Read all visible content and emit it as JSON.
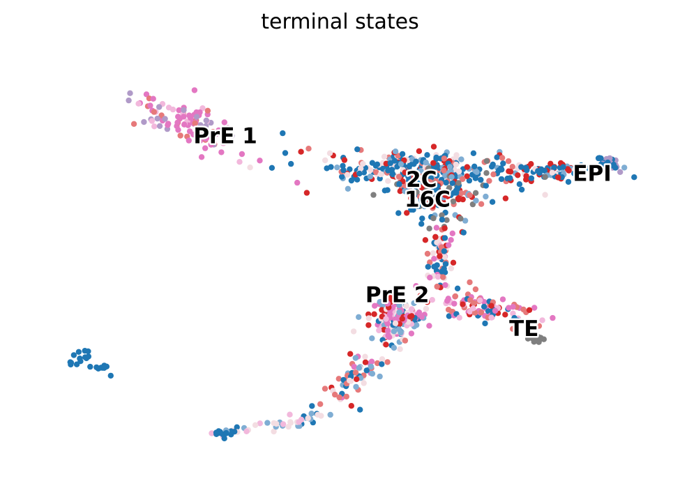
{
  "chart_data": {
    "type": "scatter",
    "title": "terminal states",
    "xlabel": "",
    "ylabel": "",
    "xlim": [
      0,
      100
    ],
    "ylim": [
      0,
      100
    ],
    "grid": false,
    "axes_visible": false,
    "colors": {
      "blue": "#1f77b4",
      "light_blue": "#7fadd3",
      "red": "#d62728",
      "light_red": "#e6797a",
      "pink": "#e377c2",
      "light_pink": "#f2b8dc",
      "faint": "#f3dde2",
      "purple": "#b09ac8",
      "gray": "#7f7f7f"
    },
    "clusters": [
      {
        "cx": 25.5,
        "cy": 82.5,
        "sx": 5.5,
        "sy": 2.2,
        "n": 110,
        "angle": -34,
        "colors": [
          "pink",
          "pink",
          "pink",
          "light_pink",
          "purple",
          "light_red"
        ]
      },
      {
        "cx": 63,
        "cy": 71.5,
        "sx": 8,
        "sy": 2.3,
        "n": 260,
        "angle": 0,
        "colors": [
          "blue",
          "blue",
          "blue",
          "red",
          "light_red",
          "light_blue",
          "faint"
        ]
      },
      {
        "cx": 66,
        "cy": 65,
        "sx": 3.6,
        "sy": 3.2,
        "n": 140,
        "angle": 0,
        "colors": [
          "blue",
          "red",
          "light_red",
          "light_blue",
          "gray",
          "blue"
        ]
      },
      {
        "cx": 85,
        "cy": 71,
        "sx": 4,
        "sy": 1.1,
        "n": 70,
        "angle": 3,
        "colors": [
          "blue",
          "blue",
          "light_blue",
          "faint",
          "red"
        ]
      },
      {
        "cx": 94.5,
        "cy": 72.8,
        "sx": 0.9,
        "sy": 0.9,
        "n": 45,
        "angle": 0,
        "colors": [
          "blue",
          "blue",
          "blue",
          "purple"
        ]
      },
      {
        "cx": 66.5,
        "cy": 49,
        "sx": 1.2,
        "sy": 4.5,
        "n": 70,
        "angle": 0,
        "colors": [
          "light_red",
          "pink",
          "red",
          "blue",
          "light_pink",
          "faint"
        ]
      },
      {
        "cx": 59.5,
        "cy": 33.5,
        "sx": 2.2,
        "sy": 2.6,
        "n": 150,
        "angle": 0,
        "colors": [
          "pink",
          "light_pink",
          "pink",
          "red",
          "light_blue",
          "blue",
          "faint"
        ]
      },
      {
        "cx": 73.5,
        "cy": 36.5,
        "sx": 5,
        "sy": 1.8,
        "n": 95,
        "angle": -22,
        "colors": [
          "pink",
          "pink",
          "red",
          "light_red",
          "blue",
          "light_pink"
        ]
      },
      {
        "cx": 82.5,
        "cy": 28.8,
        "sx": 0.8,
        "sy": 0.5,
        "n": 25,
        "angle": 0,
        "colors": [
          "gray",
          "gray",
          "gray"
        ]
      },
      {
        "cx": 53,
        "cy": 20,
        "sx": 4.5,
        "sy": 1.5,
        "n": 70,
        "angle": 52,
        "colors": [
          "light_blue",
          "blue",
          "faint",
          "light_red",
          "pink",
          "red"
        ]
      },
      {
        "cx": 40,
        "cy": 7.5,
        "sx": 5.5,
        "sy": 0.9,
        "n": 40,
        "angle": 14,
        "colors": [
          "faint",
          "light_blue",
          "blue",
          "faint",
          "light_pink"
        ]
      },
      {
        "cx": 31,
        "cy": 5,
        "sx": 1.3,
        "sy": 0.5,
        "n": 16,
        "angle": 0,
        "colors": [
          "blue",
          "blue",
          "light_blue"
        ]
      },
      {
        "cx": 7.5,
        "cy": 23.5,
        "sx": 0.9,
        "sy": 1.2,
        "n": 14,
        "angle": 0,
        "colors": [
          "blue"
        ]
      },
      {
        "cx": 10.5,
        "cy": 21.5,
        "sx": 0.6,
        "sy": 0.4,
        "n": 8,
        "angle": 0,
        "colors": [
          "blue"
        ]
      }
    ],
    "singles": [
      {
        "x": 44.5,
        "y": 65.5,
        "c": "red"
      },
      {
        "x": 12,
        "y": 19.5,
        "c": "blue"
      },
      {
        "x": 40.5,
        "y": 80.5,
        "c": "blue"
      },
      {
        "x": 48.5,
        "y": 72,
        "c": "blue"
      },
      {
        "x": 87,
        "y": 72,
        "c": "blue"
      },
      {
        "x": 84,
        "y": 69.5,
        "c": "gray"
      },
      {
        "x": 84,
        "y": 65,
        "c": "faint"
      },
      {
        "x": 70.5,
        "y": 55.5,
        "c": "blue"
      },
      {
        "x": 71.5,
        "y": 43,
        "c": "light_red"
      }
    ],
    "annotations": [
      {
        "text": "PrE 1",
        "x": 31,
        "y": 79.5
      },
      {
        "text": "2C",
        "x": 63.5,
        "y": 68.5
      },
      {
        "text": "16C",
        "x": 64.5,
        "y": 63.5
      },
      {
        "text": "EPI",
        "x": 91.8,
        "y": 70
      },
      {
        "text": "PrE 2",
        "x": 59.5,
        "y": 39.5
      },
      {
        "text": "TE",
        "x": 80.5,
        "y": 31
      }
    ]
  }
}
